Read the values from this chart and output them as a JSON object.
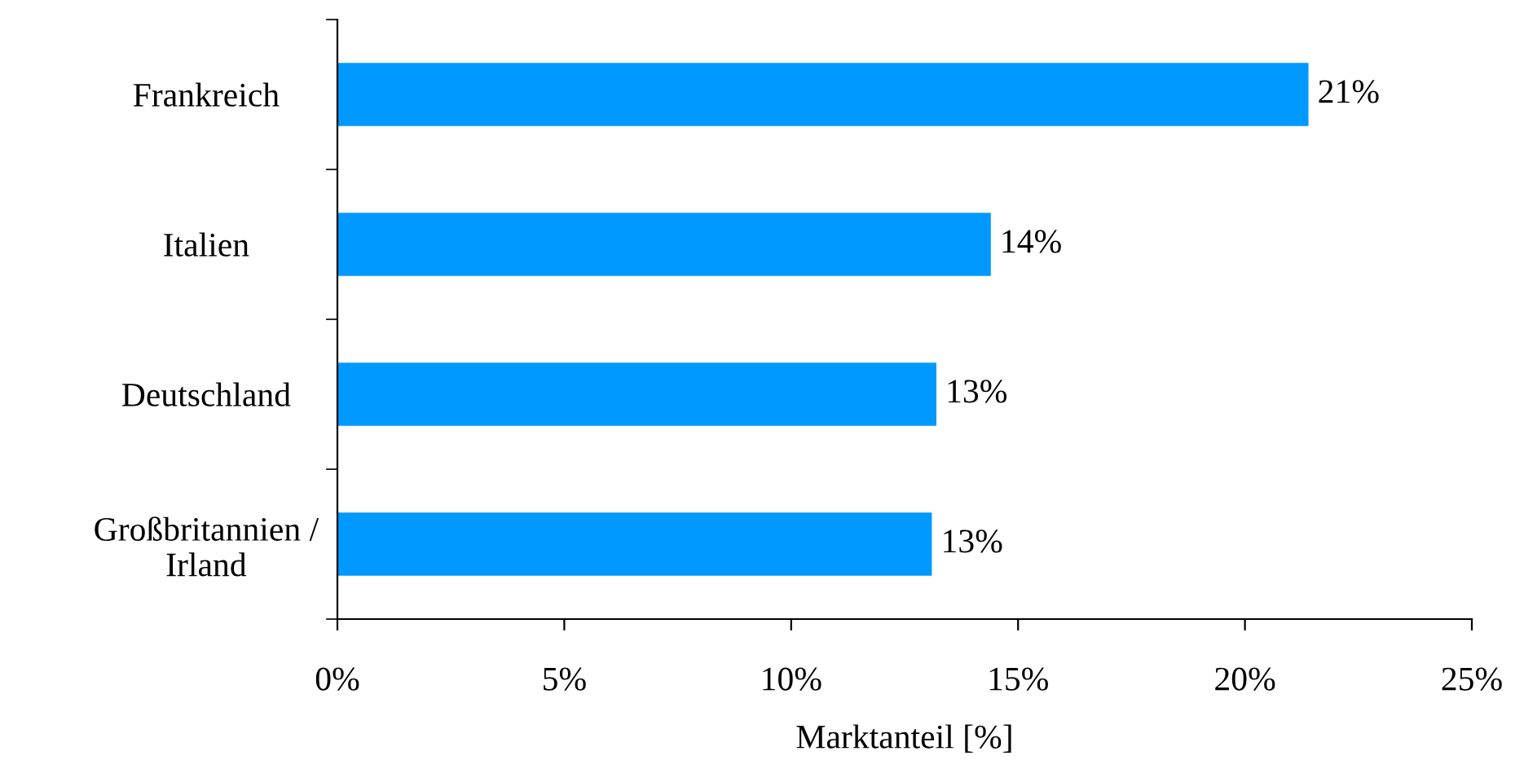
{
  "chart_data": {
    "type": "bar",
    "orientation": "horizontal",
    "xlabel": "Marktanteil [%]",
    "categories": [
      "Frankreich",
      "Italien",
      "Deutschland",
      "Großbritannien /\nIrland"
    ],
    "values": [
      21.4,
      14.4,
      13.2,
      13.1
    ],
    "value_labels": [
      "21%",
      "14%",
      "13%",
      "13%"
    ],
    "color": "#0099ff",
    "xlim": [
      0,
      25
    ],
    "xticks": [
      {
        "value": 0,
        "label": "0%"
      },
      {
        "value": 5,
        "label": "5%"
      },
      {
        "value": 10,
        "label": "10%"
      },
      {
        "value": 15,
        "label": "15%"
      },
      {
        "value": 20,
        "label": "20%"
      },
      {
        "value": 25,
        "label": "25%"
      }
    ],
    "grid": false,
    "legend": false
  }
}
